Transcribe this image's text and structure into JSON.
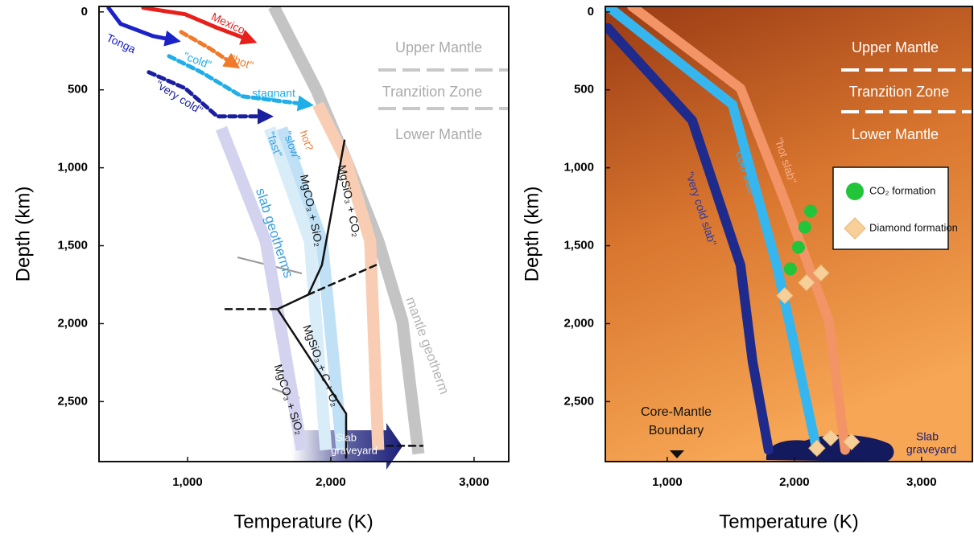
{
  "chart_data": [
    {
      "type": "line",
      "x_label": "Temperature (K)",
      "y_label": "Depth (km)",
      "xlim": [
        382,
        3242
      ],
      "ylim": [
        -35,
        2885
      ],
      "y_inverted": true,
      "xticks": [
        {
          "value": 1000,
          "label": "1,000"
        },
        {
          "value": 2000,
          "label": "2,000"
        },
        {
          "value": 3000,
          "label": "3,000"
        }
      ],
      "yticks": [
        0,
        500,
        {
          "value": 1000,
          "label": "1,000"
        },
        {
          "value": 1500,
          "label": "1,500"
        },
        {
          "value": 2000,
          "label": "2,000"
        },
        {
          "value": 2500,
          "label": "2,500"
        }
      ],
      "series": [
        {
          "name": "mantle geotherm",
          "color": "#c4c4c4",
          "style": "band",
          "x": [
            1601,
            1899,
            2107,
            2331,
            2500,
            2612
          ],
          "values": [
            -35,
            500,
            950,
            1470,
            1985,
            2835
          ]
        },
        {
          "name": "hot?",
          "color": "#f8cdb3",
          "style": "band",
          "x": [
            1910,
            2107,
            2275,
            2331
          ],
          "values": [
            593,
            954,
            1470,
            2810
          ]
        },
        {
          "name": "\"slow\"",
          "color": "#bfe0f5",
          "style": "band",
          "x": [
            1657,
            1938,
            2079
          ],
          "values": [
            747,
            1470,
            2810
          ]
        },
        {
          "name": "\"fast\"",
          "color": "#d9edf9",
          "style": "band",
          "x": [
            1573,
            1854,
            1966
          ],
          "values": [
            747,
            1470,
            2810
          ]
        },
        {
          "color": "#d3d3f0",
          "style": "band",
          "x": [
            1236,
            1545,
            1798
          ],
          "values": [
            747,
            1470,
            2810
          ]
        },
        {
          "name": "Mexico",
          "color": "#e8201c",
          "style": "solid",
          "arrow": true,
          "x": [
            691,
            983,
            1208,
            1433
          ],
          "values": [
            -26,
            15,
            103,
            180
          ]
        },
        {
          "name": "Tonga",
          "color": "#1a22c8",
          "style": "solid",
          "arrow": true,
          "x": [
            449,
            533,
            758,
            899
          ],
          "values": [
            -25,
            77,
            155,
            180
          ]
        },
        {
          "name": "\"hot\"",
          "color": "#f07a2a",
          "style": "dashed",
          "arrow": true,
          "x": [
            955,
            1152,
            1320
          ],
          "values": [
            129,
            232,
            335
          ]
        },
        {
          "name": "\"cold\"",
          "color": "#20aee8",
          "style": "dashed",
          "arrow": true,
          "x": [
            871,
            1096,
            1376,
            1826
          ],
          "values": [
            284,
            387,
            541,
            593
          ]
        },
        {
          "name": "\"very cold\"",
          "color": "#1a1fa0",
          "style": "dashed",
          "arrow": true,
          "x": [
            730,
            983,
            1208,
            1545
          ],
          "values": [
            387,
            490,
            670,
            670
          ]
        },
        {
          "color": "#111111",
          "style": "solid",
          "x": [
            2096,
            1938,
            1843,
            1629,
            2107,
            2107
          ],
          "values": [
            825,
            1624,
            1814,
            1907,
            2577,
            2861
          ]
        },
        {
          "color": "#111111",
          "style": "dashed",
          "x": [
            2315,
            1843,
            null,
            1264,
            1629,
            null,
            2388,
            2640
          ],
          "values": [
            1624,
            1814,
            null,
            1907,
            1907,
            null,
            2784,
            2784
          ]
        }
      ],
      "annotations": [
        "Upper Mantle",
        "Tranzition Zone",
        "Lower Mantle",
        "stagnant",
        "slab geotherms",
        "MgCO₃ + SiO₂",
        "MgSiO₃ + CO₂",
        "MgSiO₃ + C + O₂",
        "MgCO₃ + SiO₂",
        "Slab",
        "graveyard"
      ]
    },
    {
      "type": "line",
      "x_label": "Temperature (K)",
      "y_label": "Depth (km)",
      "xlim": [
        513,
        3400
      ],
      "ylim": [
        -35,
        2885
      ],
      "y_inverted": true,
      "xticks": [
        {
          "value": 1000,
          "label": "1,000"
        },
        {
          "value": 2000,
          "label": "2,000"
        },
        {
          "value": 3000,
          "label": "3,000"
        }
      ],
      "yticks": [
        0,
        500,
        {
          "value": 1000,
          "label": "1,000"
        },
        {
          "value": 1500,
          "label": "1,500"
        },
        {
          "value": 2000,
          "label": "2,000"
        },
        {
          "value": 2500,
          "label": "2,500"
        }
      ],
      "series": [
        {
          "name": "\"hot slab\"",
          "color": "#f39466",
          "style": "solid",
          "x": [
            722,
            1576,
            1924,
            2272,
            2399
          ],
          "values": [
            -36,
            490,
            1212,
            1985,
            2810
          ]
        },
        {
          "name": "\"cold slab\"",
          "color": "#36b6ee",
          "style": "solid",
          "x": [
            532,
            1513,
            1861,
            1987,
            2177
          ],
          "values": [
            -36,
            594,
            1627,
            2091,
            2813
          ]
        },
        {
          "name": "\"very cold slab\"",
          "color": "#1e2b8c",
          "style": "solid",
          "x": [
            532,
            1196,
            1576,
            1671,
            1797
          ],
          "values": [
            103,
            696,
            1624,
            2243,
            2810
          ]
        },
        {
          "name": "CO₂ formation",
          "color": "#22c43a",
          "marker": "circle",
          "x": [
            2127,
            2082,
            2032,
            1968
          ],
          "values": [
            1278,
            1381,
            1510,
            1649
          ]
        },
        {
          "name": "Diamond formation",
          "color": "#f7cf98",
          "marker": "diamond",
          "x": [
            2209,
            2095,
            1924,
            2285,
            2449,
            2177
          ],
          "values": [
            1675,
            1737,
            1820,
            2732,
            2758,
            2799
          ]
        }
      ],
      "annotations": [
        "Upper Mantle",
        "Tranzition Zone",
        "Lower Mantle",
        "Core-Mantle",
        "Boundary",
        "Slab",
        "graveyard"
      ]
    }
  ]
}
